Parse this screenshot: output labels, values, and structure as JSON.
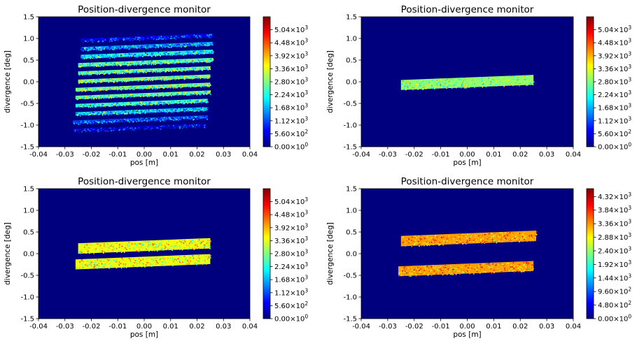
{
  "colorbar_colors": [
    "#00007f",
    "#0000ff",
    "#007fff",
    "#00ffff",
    "#7fff7f",
    "#ffff00",
    "#ff7f00",
    "#ff0000",
    "#7f0000"
  ],
  "background_color": "#00007f",
  "chart_data": [
    {
      "type": "heatmap",
      "title": "Position-divergence monitor",
      "xlabel": "pos [m]",
      "ylabel": "divergence [deg]",
      "xlim": [
        -0.04,
        0.04
      ],
      "ylim": [
        -1.5,
        1.5
      ],
      "xticks": [
        "-0.04",
        "-0.03",
        "-0.02",
        "-0.01",
        "0.00",
        "0.01",
        "0.02",
        "0.03",
        "0.04"
      ],
      "yticks": [
        "-1.5",
        "-1.0",
        "-0.5",
        "0.0",
        "0.5",
        "1.0",
        "1.5"
      ],
      "colorbar": {
        "min": 0,
        "max": 5600,
        "ticks": [
          {
            "m": "0.00",
            "e": "0"
          },
          {
            "m": "5.60",
            "e": "2"
          },
          {
            "m": "1.12",
            "e": "3"
          },
          {
            "m": "1.68",
            "e": "3"
          },
          {
            "m": "2.24",
            "e": "3"
          },
          {
            "m": "2.80",
            "e": "3"
          },
          {
            "m": "3.36",
            "e": "3"
          },
          {
            "m": "3.92",
            "e": "3"
          },
          {
            "m": "4.48",
            "e": "3"
          },
          {
            "m": "5.04",
            "e": "3"
          }
        ]
      },
      "bands": [
        {
          "x": [
            -0.024,
            0.026
          ],
          "y": [
            0.97,
            1.05
          ],
          "intensity": 700
        },
        {
          "x": [
            -0.024,
            0.026
          ],
          "y": [
            0.78,
            0.86
          ],
          "intensity": 1500
        },
        {
          "x": [
            -0.024,
            0.026
          ],
          "y": [
            0.59,
            0.68
          ],
          "intensity": 2000
        },
        {
          "x": [
            -0.025,
            0.026
          ],
          "y": [
            0.4,
            0.49
          ],
          "intensity": 2500
        },
        {
          "x": [
            -0.025,
            0.025
          ],
          "y": [
            0.22,
            0.3
          ],
          "intensity": 2600
        },
        {
          "x": [
            -0.025,
            0.025
          ],
          "y": [
            0.03,
            0.11
          ],
          "intensity": 2800
        },
        {
          "x": [
            -0.026,
            0.025
          ],
          "y": [
            -0.16,
            -0.08
          ],
          "intensity": 2800
        },
        {
          "x": [
            -0.026,
            0.025
          ],
          "y": [
            -0.34,
            -0.26
          ],
          "intensity": 2600
        },
        {
          "x": [
            -0.026,
            0.024
          ],
          "y": [
            -0.53,
            -0.45
          ],
          "intensity": 2300
        },
        {
          "x": [
            -0.026,
            0.024
          ],
          "y": [
            -0.72,
            -0.64
          ],
          "intensity": 1800
        },
        {
          "x": [
            -0.027,
            0.024
          ],
          "y": [
            -0.91,
            -0.83
          ],
          "intensity": 1100
        },
        {
          "x": [
            -0.027,
            0.023
          ],
          "y": [
            -1.1,
            -1.02
          ],
          "intensity": 500
        }
      ]
    },
    {
      "type": "heatmap",
      "title": "Position-divergence monitor",
      "xlabel": "pos [m]",
      "ylabel": "divergence [deg]",
      "xlim": [
        -0.04,
        0.04
      ],
      "ylim": [
        -1.5,
        1.5
      ],
      "xticks": [
        "-0.04",
        "-0.03",
        "-0.02",
        "-0.01",
        "0.00",
        "0.01",
        "0.02",
        "0.03",
        "0.04"
      ],
      "yticks": [
        "-1.5",
        "-1.0",
        "-0.5",
        "0.0",
        "0.5",
        "1.0",
        "1.5"
      ],
      "colorbar": {
        "min": 0,
        "max": 5600,
        "ticks": [
          {
            "m": "0.00",
            "e": "0"
          },
          {
            "m": "5.60",
            "e": "2"
          },
          {
            "m": "1.12",
            "e": "3"
          },
          {
            "m": "1.68",
            "e": "3"
          },
          {
            "m": "2.24",
            "e": "3"
          },
          {
            "m": "2.80",
            "e": "3"
          },
          {
            "m": "3.36",
            "e": "3"
          },
          {
            "m": "3.92",
            "e": "3"
          },
          {
            "m": "4.48",
            "e": "3"
          },
          {
            "m": "5.04",
            "e": "3"
          }
        ]
      },
      "bands": [
        {
          "x": [
            -0.025,
            0.025
          ],
          "y": [
            -0.13,
            0.1
          ],
          "intensity": 2900
        }
      ]
    },
    {
      "type": "heatmap",
      "title": "Position-divergence monitor",
      "xlabel": "pos [m]",
      "ylabel": "divergence [deg]",
      "xlim": [
        -0.04,
        0.04
      ],
      "ylim": [
        -1.5,
        1.5
      ],
      "xticks": [
        "-0.04",
        "-0.03",
        "-0.02",
        "-0.01",
        "0.00",
        "0.01",
        "0.02",
        "0.03",
        "0.04"
      ],
      "yticks": [
        "-1.5",
        "-1.0",
        "-0.5",
        "0.0",
        "0.5",
        "1.0",
        "1.5"
      ],
      "colorbar": {
        "min": 0,
        "max": 5600,
        "ticks": [
          {
            "m": "0.00",
            "e": "0"
          },
          {
            "m": "5.60",
            "e": "2"
          },
          {
            "m": "1.12",
            "e": "3"
          },
          {
            "m": "1.68",
            "e": "3"
          },
          {
            "m": "2.24",
            "e": "3"
          },
          {
            "m": "2.80",
            "e": "3"
          },
          {
            "m": "3.36",
            "e": "3"
          },
          {
            "m": "3.92",
            "e": "3"
          },
          {
            "m": "4.48",
            "e": "3"
          },
          {
            "m": "5.04",
            "e": "3"
          }
        ]
      },
      "bands": [
        {
          "x": [
            -0.025,
            0.025
          ],
          "y": [
            0.06,
            0.3
          ],
          "intensity": 3400
        },
        {
          "x": [
            -0.026,
            0.025
          ],
          "y": [
            -0.3,
            -0.07
          ],
          "intensity": 3400
        }
      ]
    },
    {
      "type": "heatmap",
      "title": "Position-divergence monitor",
      "xlabel": "pos [m]",
      "ylabel": "divergence [deg]",
      "xlim": [
        -0.04,
        0.04
      ],
      "ylim": [
        -1.5,
        1.5
      ],
      "xticks": [
        "-0.04",
        "-0.03",
        "-0.02",
        "-0.01",
        "0.00",
        "0.01",
        "0.02",
        "0.03",
        "0.04"
      ],
      "yticks": [
        "-1.5",
        "-1.0",
        "-0.5",
        "0.0",
        "0.5",
        "1.0",
        "1.5"
      ],
      "colorbar": {
        "min": 0,
        "max": 4600,
        "ticks": [
          {
            "m": "0.00",
            "e": "0"
          },
          {
            "m": "4.80",
            "e": "2"
          },
          {
            "m": "9.60",
            "e": "2"
          },
          {
            "m": "1.44",
            "e": "3"
          },
          {
            "m": "1.92",
            "e": "3"
          },
          {
            "m": "2.40",
            "e": "3"
          },
          {
            "m": "2.88",
            "e": "3"
          },
          {
            "m": "3.36",
            "e": "3"
          },
          {
            "m": "3.84",
            "e": "3"
          },
          {
            "m": "4.32",
            "e": "3"
          }
        ]
      },
      "bands": [
        {
          "x": [
            -0.025,
            0.026
          ],
          "y": [
            0.23,
            0.47
          ],
          "intensity": 3300
        },
        {
          "x": [
            -0.026,
            0.025
          ],
          "y": [
            -0.46,
            -0.23
          ],
          "intensity": 3300
        }
      ]
    }
  ]
}
